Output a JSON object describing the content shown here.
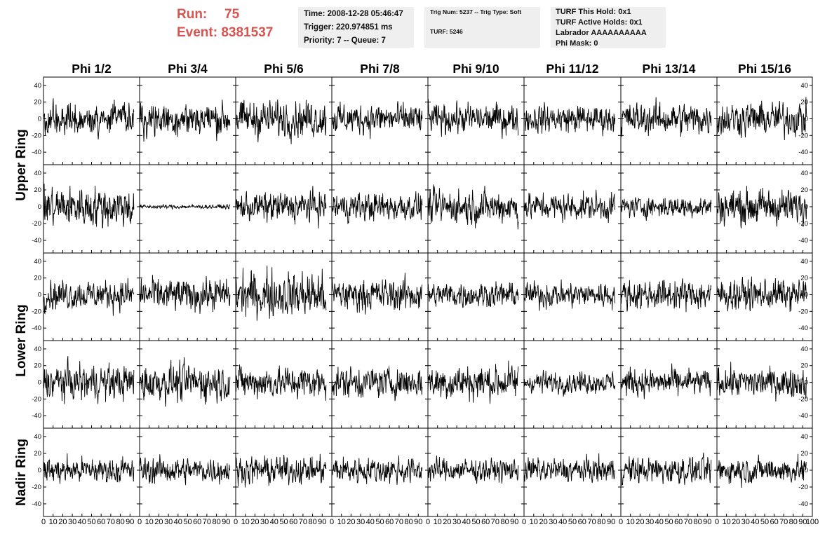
{
  "header": {
    "run_label": "Run:",
    "run_value": "75",
    "event_label": "Event:",
    "event_value": "8381537",
    "time_box": {
      "time": "Time: 2008-12-28 05:46:47",
      "trigger": "Trigger: 220.974851 ms",
      "priority": "Priority: 7 -- Queue: 7"
    },
    "trig_box": {
      "trig": "Trig Num: 5237 -- Trig Type: Soft",
      "turf": "TURF: 5246"
    },
    "turf_box": {
      "this_hold": "TURF This Hold: 0x1",
      "active_holds": "TURF Active Holds: 0x1",
      "labrador": "Labrador AAAAAAAAAA",
      "phi_mask": "Phi Mask: 0"
    }
  },
  "chart_data": {
    "type": "line",
    "columns": [
      "Phi 1/2",
      "Phi 3/4",
      "Phi 5/6",
      "Phi 7/8",
      "Phi 9/10",
      "Phi 11/12",
      "Phi 13/14",
      "Phi 15/16"
    ],
    "row_groups": [
      {
        "label": "Upper Ring",
        "rows": [
          0,
          1
        ]
      },
      {
        "label": "Lower Ring",
        "rows": [
          2,
          3
        ]
      },
      {
        "label": "Nadir Ring",
        "rows": [
          4
        ]
      }
    ],
    "xlim": [
      0,
      100
    ],
    "ylim": [
      -55,
      50
    ],
    "yticks": [
      -40,
      -20,
      0,
      20,
      40
    ],
    "xticks": [
      0,
      10,
      20,
      30,
      40,
      50,
      60,
      70,
      80,
      90,
      100
    ],
    "samples_per_trace": 260,
    "trace_x_range": [
      0,
      94
    ],
    "panel_amplitudes": [
      [
        24,
        26,
        27,
        23,
        22,
        21,
        24,
        26
      ],
      [
        30,
        3,
        22,
        21,
        25,
        20,
        16,
        26
      ],
      [
        22,
        24,
        35,
        24,
        19,
        19,
        22,
        23
      ],
      [
        26,
        28,
        24,
        23,
        26,
        16,
        20,
        22
      ],
      [
        19,
        19,
        20,
        20,
        17,
        18,
        20,
        19
      ]
    ],
    "grid": false,
    "trace_color": "#000000"
  }
}
